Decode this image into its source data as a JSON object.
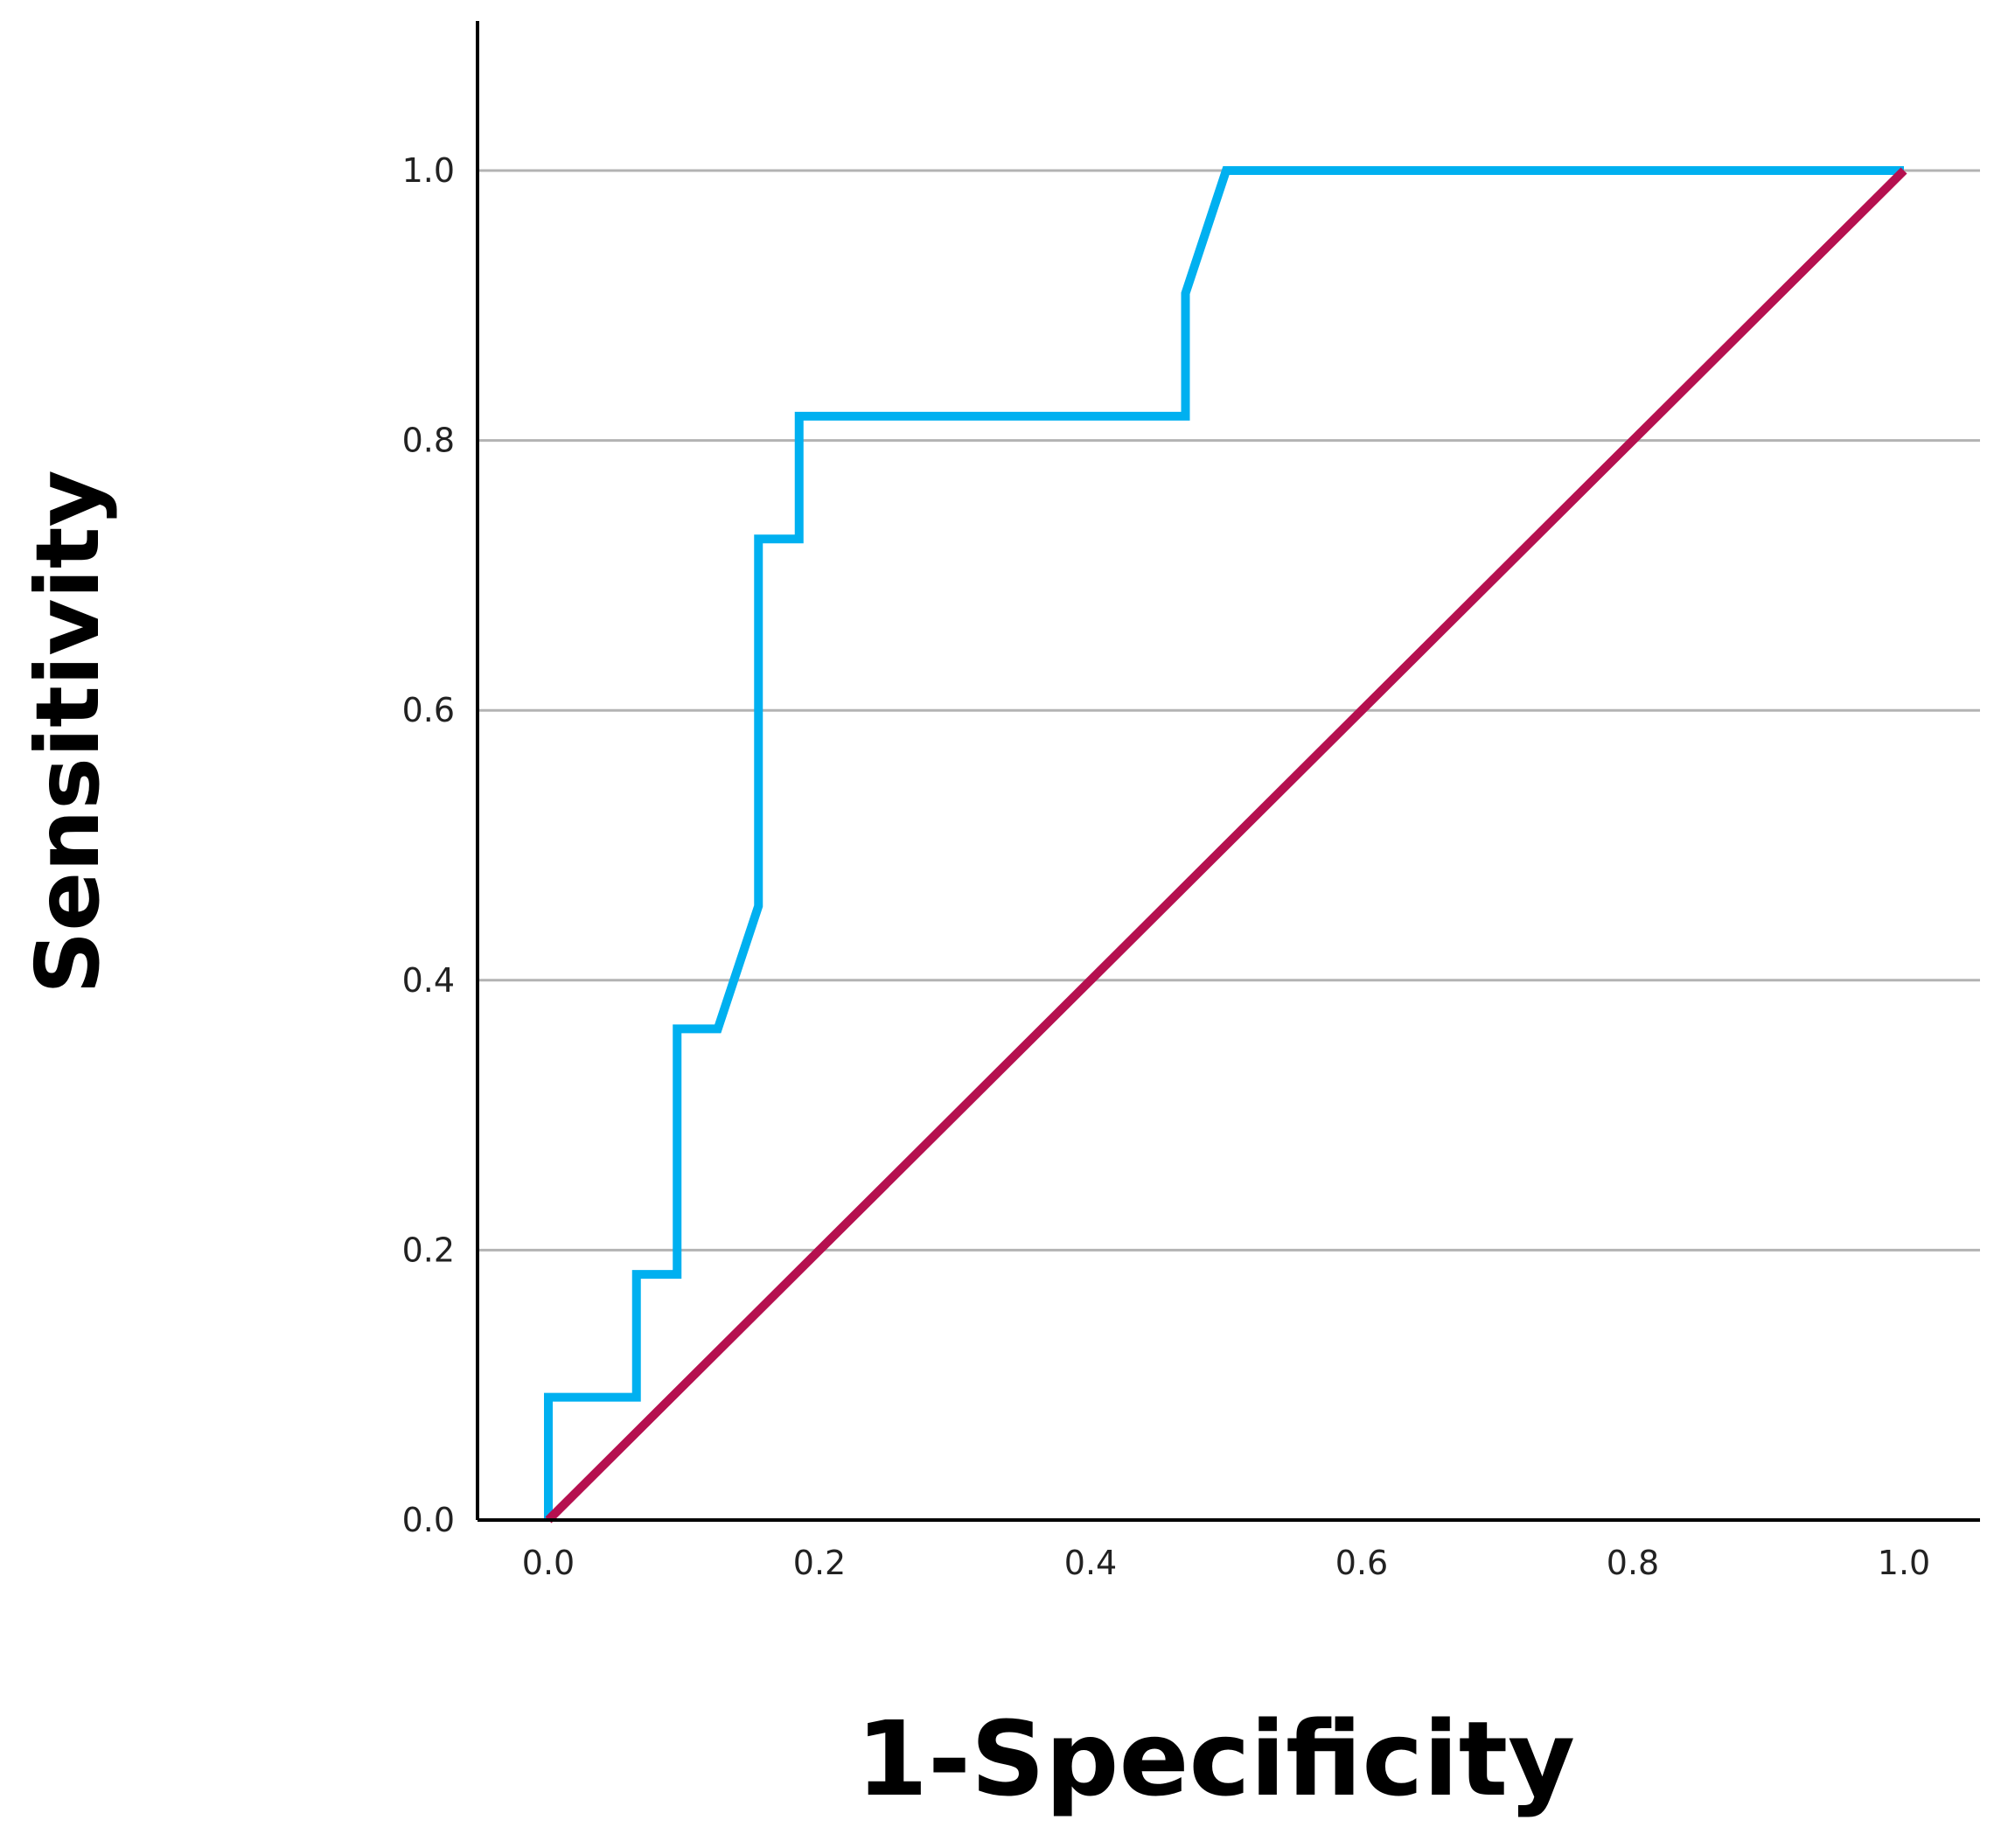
{
  "chart_data": {
    "type": "line",
    "title": "",
    "xlabel": "1-Specificity",
    "ylabel": "Sensitivity",
    "xlim": [
      0,
      1.0
    ],
    "ylim": [
      0,
      1.1
    ],
    "grid": "horizontal",
    "x_ticks": [
      "0.0",
      "0.2",
      "0.4",
      "0.6",
      "0.8",
      "1.0"
    ],
    "y_ticks": [
      "0.0",
      "0.2",
      "0.4",
      "0.6",
      "0.8",
      "1.0"
    ],
    "x_tick_values": [
      0,
      0.2,
      0.4,
      0.6,
      0.8,
      1.0
    ],
    "y_tick_values": [
      0,
      0.2,
      0.4,
      0.6,
      0.8,
      1.0
    ],
    "series": [
      {
        "color": "#00b0f0",
        "x": [
          0.0,
          0.0,
          0.065,
          0.065,
          0.095,
          0.095,
          0.125,
          0.155,
          0.155,
          0.185,
          0.185,
          0.47,
          0.47,
          0.5,
          1.0
        ],
        "y": [
          0.0,
          0.091,
          0.091,
          0.182,
          0.182,
          0.364,
          0.364,
          0.455,
          0.727,
          0.727,
          0.818,
          0.818,
          0.909,
          1.0,
          1.0
        ]
      },
      {
        "color": "#b5104f",
        "x": [
          0.0,
          1.0
        ],
        "y": [
          0.0,
          1.0
        ]
      }
    ]
  }
}
